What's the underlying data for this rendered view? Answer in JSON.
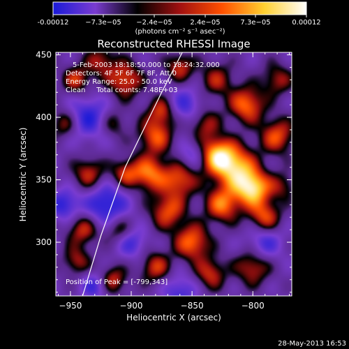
{
  "colorbar": {
    "ticks": [
      "-0.00012",
      "−7.3e−05",
      "−2.4e−05",
      "2.4e−05",
      "7.3e−05",
      "0.00012"
    ],
    "unit_label": "(photons cm⁻² s⁻¹ asec⁻²)",
    "colors": [
      "#1a1ad8",
      "#7a3cd0",
      "#000000",
      "#a01010",
      "#ff5000",
      "#ffd030",
      "#ffffff"
    ]
  },
  "chart_data": {
    "type": "heatmap",
    "title": "Reconstructed RHESSI Image",
    "xlabel": "Heliocentric X (arcsec)",
    "ylabel": "Heliocentric Y (arcsec)",
    "xlim": [
      -962,
      -768
    ],
    "ylim": [
      257,
      452
    ],
    "x_ticks": [
      -950,
      -900,
      -850,
      -800
    ],
    "y_ticks": [
      300,
      350,
      400,
      450
    ],
    "x_tick_labels": [
      "−950",
      "−900",
      "−850",
      "−800"
    ],
    "y_tick_labels": [
      "300",
      "350",
      "400",
      "450"
    ],
    "value_range": [
      -0.00012,
      0.00012
    ],
    "limb_curve": [
      [
        -940,
        257
      ],
      [
        -925,
        305
      ],
      [
        -905,
        360
      ],
      [
        -890,
        390
      ],
      [
        -875,
        420
      ],
      [
        -858,
        452
      ]
    ],
    "peak": [
      -799,
      343
    ],
    "annotations": {
      "time": "5-Feb-2003 18:18:50.000 to 18:24:32.000",
      "detectors": "Detectors: 4F 5F 6F 7F 8F, Att 0",
      "energy": "Energy Range: 25.0 - 50.0 keV",
      "clean": "Clean     Total counts: 7.48E+03",
      "peak_text": "Position of Peak = [-799,343]"
    }
  },
  "timestamp": "28-May-2013 16:53"
}
